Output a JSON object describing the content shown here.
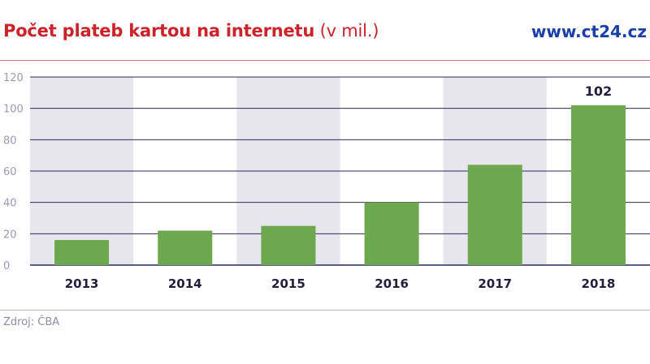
{
  "header": {
    "title_main": "Počet plateb kartou na internetu",
    "title_unit": "(v mil.)",
    "brand": "www.ct24.cz"
  },
  "footer": {
    "source": "Zdroj: ČBA"
  },
  "colors": {
    "title": "#cc2229",
    "brand": "#1a3fa8",
    "bar": "#6ea84e",
    "band": "#e8e6ed",
    "grid": "#2a2a5a",
    "axis_text": "#9a9ab4",
    "label_text": "#1f1f3d"
  },
  "chart_data": {
    "type": "bar",
    "title": "Počet plateb kartou na internetu (v mil.)",
    "xlabel": "",
    "ylabel": "",
    "categories": [
      "2013",
      "2014",
      "2015",
      "2016",
      "2017",
      "2018"
    ],
    "values": [
      16,
      22,
      25,
      40,
      64,
      102
    ],
    "ylim": [
      0,
      120
    ],
    "yticks": [
      0,
      20,
      40,
      60,
      80,
      100,
      120
    ],
    "data_labels": [
      null,
      null,
      null,
      null,
      null,
      "102"
    ],
    "grid": true,
    "alternating_bands": true,
    "legend": "none"
  }
}
